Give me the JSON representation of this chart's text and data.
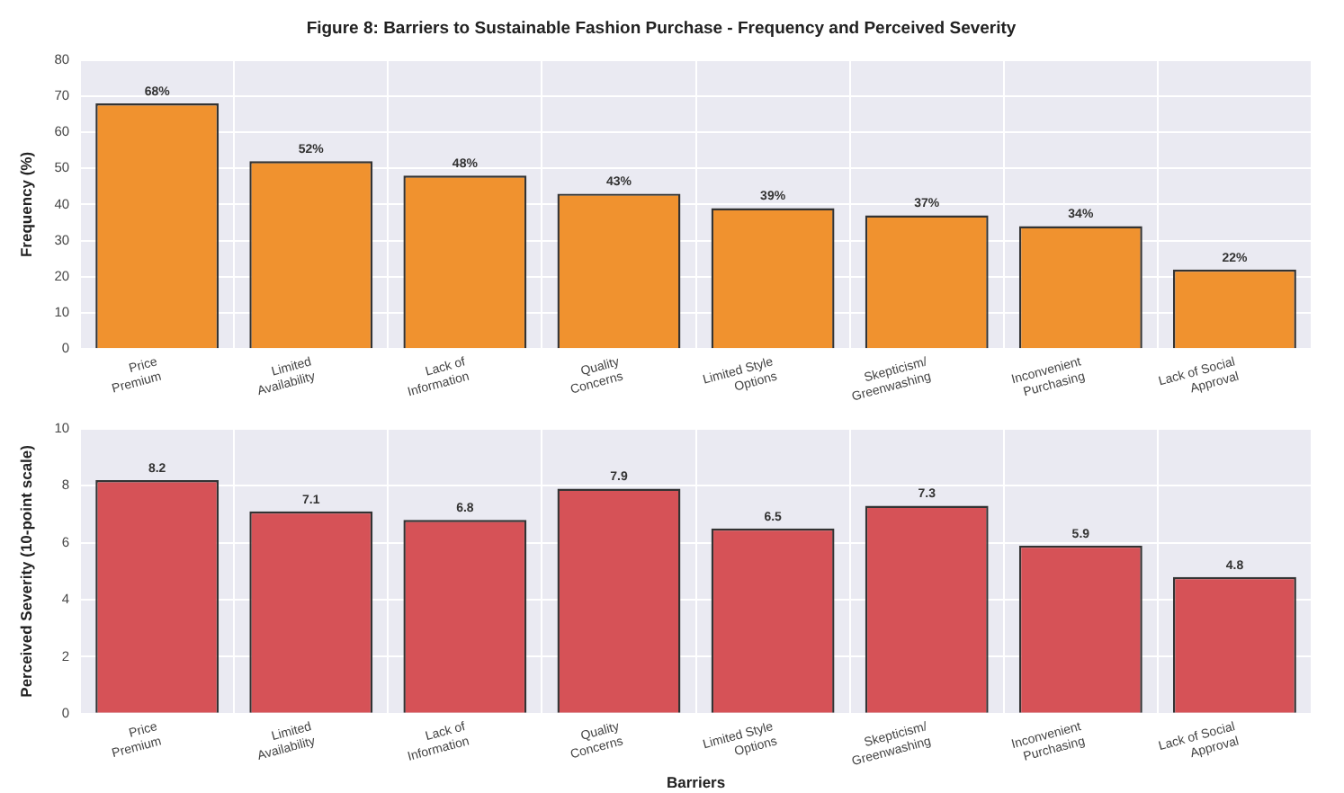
{
  "chart_data": [
    {
      "type": "bar",
      "title": "Figure 8: Barriers to Sustainable Fashion Purchase - Frequency and Perceived Severity",
      "ylabel": "Frequency (%)",
      "categories": [
        "Price\nPremium",
        "Limited\nAvailability",
        "Lack of\nInformation",
        "Quality\nConcerns",
        "Limited Style\nOptions",
        "Skepticism/\nGreenwashing",
        "Inconvenient\nPurchasing",
        "Lack of Social\nApproval"
      ],
      "values": [
        68,
        52,
        48,
        43,
        39,
        37,
        34,
        22
      ],
      "color": "#f0922f",
      "value_labels": [
        "68%",
        "52%",
        "48%",
        "43%",
        "39%",
        "37%",
        "34%",
        "22%"
      ],
      "ylim": [
        0,
        80
      ],
      "yticks": [
        0,
        10,
        20,
        30,
        40,
        50,
        60,
        70,
        80
      ],
      "grid": true
    },
    {
      "type": "bar",
      "ylabel": "Perceived Severity (10-point scale)",
      "xlabel": "Barriers",
      "categories": [
        "Price\nPremium",
        "Limited\nAvailability",
        "Lack of\nInformation",
        "Quality\nConcerns",
        "Limited Style\nOptions",
        "Skepticism/\nGreenwashing",
        "Inconvenient\nPurchasing",
        "Lack of Social\nApproval"
      ],
      "values": [
        8.2,
        7.1,
        6.8,
        7.9,
        6.5,
        7.3,
        5.9,
        4.8
      ],
      "color": "#d65257",
      "data_labels": true,
      "ylim": [
        0,
        10
      ],
      "yticks": [
        0,
        2,
        4,
        6,
        8,
        10
      ],
      "grid": true
    }
  ]
}
